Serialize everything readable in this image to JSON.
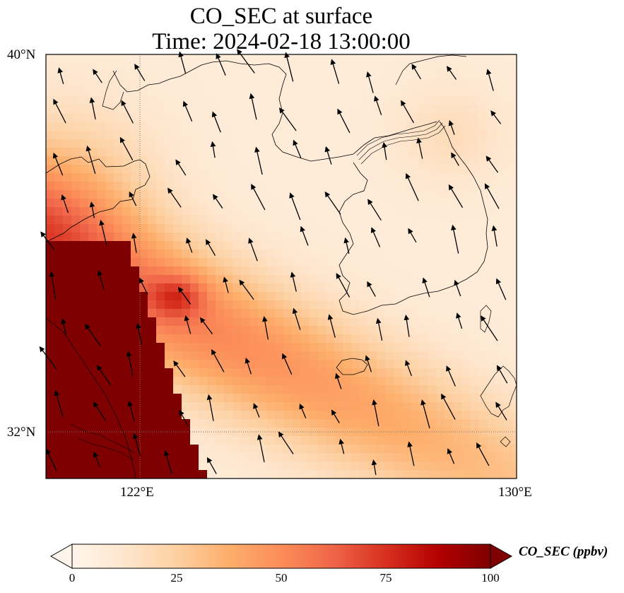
{
  "title": {
    "line1": "CO_SEC at surface",
    "line2": "Time: 2024-02-18 13:00:00"
  },
  "map": {
    "lon_range": [
      120,
      130
    ],
    "lat_range": [
      31,
      40
    ],
    "lat_ticks": [
      "40°N",
      "32°N"
    ],
    "lon_ticks": [
      "122°E",
      "130°E"
    ],
    "gridline_lon": 122,
    "gridline_lat": 32,
    "field_description": "CO_SEC concentration (ppbv)",
    "colormap": [
      "#fff5eb",
      "#fee6ce",
      "#fdd0a2",
      "#fdae6b",
      "#fd8d3c",
      "#f16913",
      "#d94801",
      "#a50f15",
      "#7f0000"
    ],
    "land_lines_color": "#000000",
    "arrow_color": "#000000"
  },
  "colorbar": {
    "min": 0,
    "max": 100,
    "ticks": [
      "0",
      "25",
      "50",
      "75",
      "100"
    ],
    "label": "CO_SEC (ppbv)",
    "stops": [
      {
        "v": 0,
        "c": "#fff5eb"
      },
      {
        "v": 12.5,
        "c": "#fee6ce"
      },
      {
        "v": 25,
        "c": "#fdd0a2"
      },
      {
        "v": 37.5,
        "c": "#fdae6b"
      },
      {
        "v": 50,
        "c": "#fc8d59"
      },
      {
        "v": 62.5,
        "c": "#ef6548"
      },
      {
        "v": 75,
        "c": "#d7301f"
      },
      {
        "v": 87.5,
        "c": "#b30000"
      },
      {
        "v": 100,
        "c": "#7f0000"
      }
    ]
  }
}
